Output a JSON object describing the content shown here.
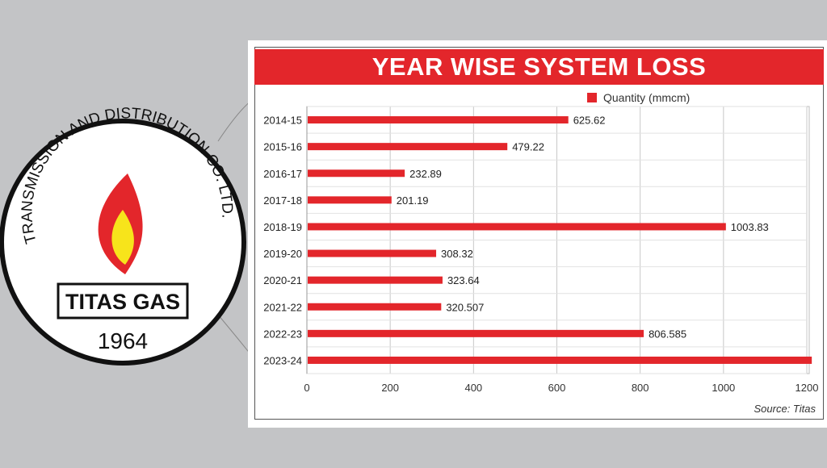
{
  "logo": {
    "arc_text": "TRANSMISSION AND DISTRIBUTION CO. LTD.",
    "brand": "TITAS GAS",
    "year": "1964"
  },
  "colors": {
    "bar": "#e3262b",
    "title_bar": "#e3262b",
    "grid": "#c8c8c8",
    "background": "#c3c4c6"
  },
  "chart_data": {
    "type": "bar",
    "orientation": "horizontal",
    "title": "YEAR WISE SYSTEM LOSS",
    "categories": [
      "2014-15",
      "2015-16",
      "2016-17",
      "2017-18",
      "2018-19",
      "2019-20",
      "2020-21",
      "2021-22",
      "2022-23",
      "2023-24"
    ],
    "series": [
      {
        "name": "Quantity (mmcm)",
        "values": [
          625.62,
          479.22,
          232.89,
          201.19,
          1003.83,
          308.32,
          323.64,
          320.507,
          806.585,
          1210
        ],
        "labels": [
          "625.62",
          "479.22",
          "232.89",
          "201.19",
          "1003.83",
          "308.32",
          "323.64",
          "320.507",
          "806.585",
          ""
        ]
      }
    ],
    "xlim": [
      0,
      1200
    ],
    "xticks": [
      "0",
      "200",
      "400",
      "600",
      "800",
      "1000",
      "1200"
    ],
    "grid": "vertical",
    "legend_position": "top-right",
    "source": "Source: Titas"
  }
}
